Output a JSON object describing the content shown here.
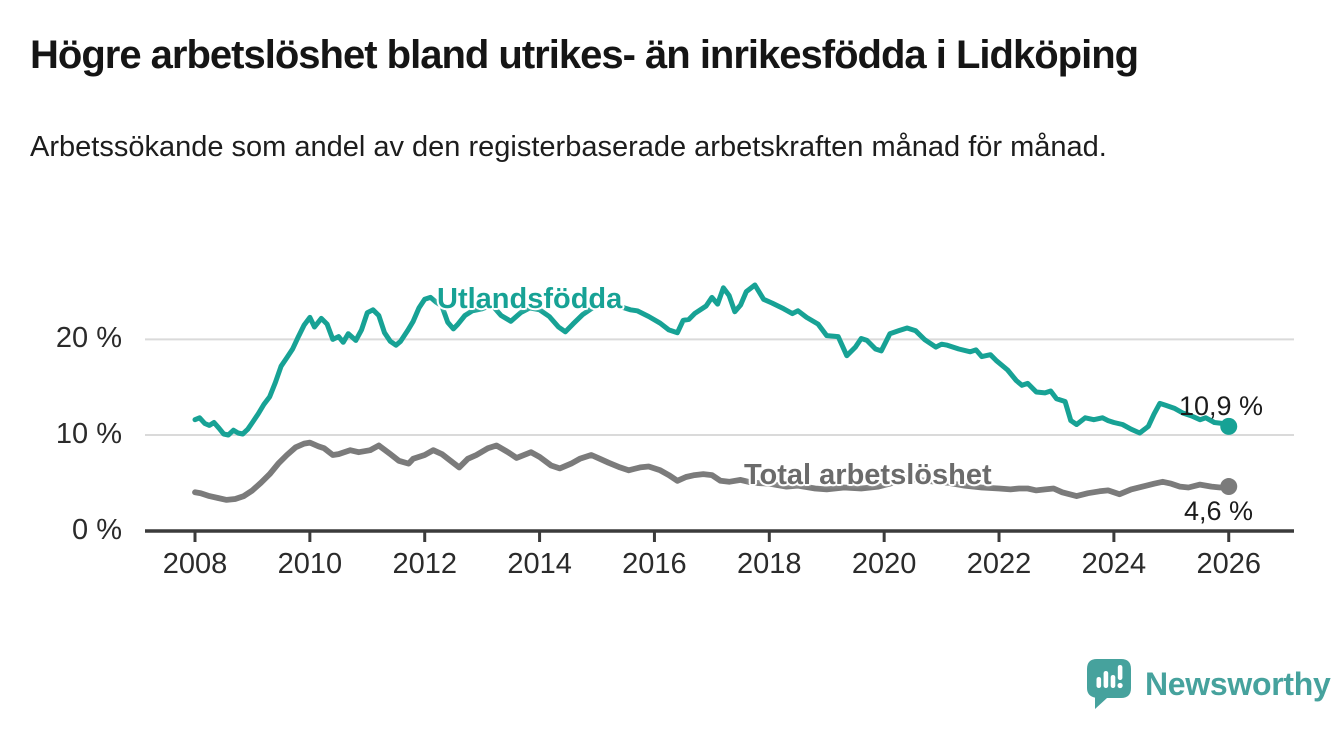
{
  "header": {
    "title": "Högre arbetslöshet bland utrikes- än inrikesfödda i Lidköping",
    "subtitle": "Arbetssökande som andel av den registerbaserade arbetskraften månad för månad."
  },
  "colors": {
    "foreign_line": "#17a295",
    "total_line": "#7b7b7b",
    "foreign_label": "#17a295",
    "total_label": "#6b6b6b",
    "axis": "#3b3b3b",
    "grid": "#dadada",
    "tick_text": "#2b2b2b",
    "end_label_text": "#1b1b1b",
    "brand": "#46a29d"
  },
  "footer": {
    "brand": "Newsworthy"
  },
  "chart_data": {
    "type": "line",
    "title": "Högre arbetslöshet bland utrikes- än inrikesfödda i Lidköping",
    "xlabel": "",
    "ylabel": "",
    "unit": "%",
    "grid": "horizontal",
    "legend_position": "inline-labels",
    "xlim": [
      2007.1,
      2027.15
    ],
    "ylim": [
      0,
      26.5
    ],
    "x_ticks": [
      2008,
      2010,
      2012,
      2014,
      2016,
      2018,
      2020,
      2022,
      2024,
      2026
    ],
    "y_ticks": [
      {
        "value": 0,
        "label": "0 %"
      },
      {
        "value": 10,
        "label": "10 %"
      },
      {
        "value": 20,
        "label": "20 %"
      }
    ],
    "grid_values": [
      10,
      20
    ],
    "series": [
      {
        "name": "Utlandsfödda",
        "color": "#17a295",
        "label_color": "#17a295",
        "end_label": "10,9 %",
        "end_value": 10.9,
        "points": [
          [
            2008.0,
            11.6
          ],
          [
            2008.08,
            11.8
          ],
          [
            2008.17,
            11.2
          ],
          [
            2008.25,
            11.0
          ],
          [
            2008.33,
            11.3
          ],
          [
            2008.42,
            10.7
          ],
          [
            2008.5,
            10.1
          ],
          [
            2008.58,
            10.0
          ],
          [
            2008.67,
            10.5
          ],
          [
            2008.75,
            10.2
          ],
          [
            2008.83,
            10.1
          ],
          [
            2008.92,
            10.6
          ],
          [
            2009.0,
            11.3
          ],
          [
            2009.1,
            12.2
          ],
          [
            2009.2,
            13.2
          ],
          [
            2009.3,
            14.0
          ],
          [
            2009.4,
            15.5
          ],
          [
            2009.5,
            17.2
          ],
          [
            2009.6,
            18.1
          ],
          [
            2009.7,
            19.0
          ],
          [
            2009.8,
            20.3
          ],
          [
            2009.9,
            21.5
          ],
          [
            2010.0,
            22.3
          ],
          [
            2010.08,
            21.3
          ],
          [
            2010.2,
            22.2
          ],
          [
            2010.3,
            21.6
          ],
          [
            2010.4,
            20.0
          ],
          [
            2010.5,
            20.3
          ],
          [
            2010.58,
            19.7
          ],
          [
            2010.67,
            20.6
          ],
          [
            2010.8,
            19.9
          ],
          [
            2010.9,
            21.0
          ],
          [
            2011.0,
            22.8
          ],
          [
            2011.1,
            23.1
          ],
          [
            2011.2,
            22.5
          ],
          [
            2011.3,
            20.7
          ],
          [
            2011.4,
            19.8
          ],
          [
            2011.5,
            19.4
          ],
          [
            2011.58,
            19.8
          ],
          [
            2011.7,
            20.9
          ],
          [
            2011.8,
            21.9
          ],
          [
            2011.9,
            23.3
          ],
          [
            2012.0,
            24.2
          ],
          [
            2012.1,
            24.4
          ],
          [
            2012.2,
            23.9
          ],
          [
            2012.3,
            23.5
          ],
          [
            2012.4,
            21.8
          ],
          [
            2012.5,
            21.1
          ],
          [
            2012.58,
            21.6
          ],
          [
            2012.7,
            22.5
          ],
          [
            2012.83,
            23.0
          ],
          [
            2013.0,
            23.2
          ],
          [
            2013.17,
            23.6
          ],
          [
            2013.33,
            22.5
          ],
          [
            2013.5,
            21.9
          ],
          [
            2013.67,
            22.8
          ],
          [
            2013.83,
            23.3
          ],
          [
            2014.0,
            23.1
          ],
          [
            2014.17,
            22.4
          ],
          [
            2014.33,
            21.3
          ],
          [
            2014.45,
            20.8
          ],
          [
            2014.58,
            21.6
          ],
          [
            2014.75,
            22.6
          ],
          [
            2014.92,
            23.3
          ],
          [
            2015.08,
            23.6
          ],
          [
            2015.25,
            23.8
          ],
          [
            2015.42,
            23.4
          ],
          [
            2015.58,
            23.1
          ],
          [
            2015.7,
            23.0
          ],
          [
            2015.9,
            22.4
          ],
          [
            2016.1,
            21.7
          ],
          [
            2016.25,
            21.0
          ],
          [
            2016.4,
            20.7
          ],
          [
            2016.5,
            22.0
          ],
          [
            2016.6,
            22.1
          ],
          [
            2016.7,
            22.7
          ],
          [
            2016.9,
            23.5
          ],
          [
            2017.0,
            24.4
          ],
          [
            2017.1,
            23.7
          ],
          [
            2017.2,
            25.4
          ],
          [
            2017.3,
            24.6
          ],
          [
            2017.4,
            22.9
          ],
          [
            2017.5,
            23.6
          ],
          [
            2017.6,
            25.0
          ],
          [
            2017.75,
            25.7
          ],
          [
            2017.9,
            24.2
          ],
          [
            2018.05,
            23.8
          ],
          [
            2018.25,
            23.2
          ],
          [
            2018.4,
            22.7
          ],
          [
            2018.5,
            23.0
          ],
          [
            2018.65,
            22.3
          ],
          [
            2018.85,
            21.6
          ],
          [
            2019.0,
            20.4
          ],
          [
            2019.2,
            20.3
          ],
          [
            2019.35,
            18.3
          ],
          [
            2019.5,
            19.2
          ],
          [
            2019.6,
            20.1
          ],
          [
            2019.7,
            19.9
          ],
          [
            2019.85,
            19.0
          ],
          [
            2019.95,
            18.8
          ],
          [
            2020.1,
            20.6
          ],
          [
            2020.25,
            20.9
          ],
          [
            2020.4,
            21.2
          ],
          [
            2020.55,
            20.9
          ],
          [
            2020.7,
            20.0
          ],
          [
            2020.9,
            19.2
          ],
          [
            2021.0,
            19.5
          ],
          [
            2021.1,
            19.4
          ],
          [
            2021.3,
            19.0
          ],
          [
            2021.5,
            18.7
          ],
          [
            2021.6,
            18.9
          ],
          [
            2021.7,
            18.2
          ],
          [
            2021.85,
            18.4
          ],
          [
            2021.95,
            17.8
          ],
          [
            2022.15,
            16.8
          ],
          [
            2022.3,
            15.7
          ],
          [
            2022.4,
            15.2
          ],
          [
            2022.5,
            15.4
          ],
          [
            2022.65,
            14.5
          ],
          [
            2022.8,
            14.4
          ],
          [
            2022.9,
            14.6
          ],
          [
            2023.0,
            13.8
          ],
          [
            2023.15,
            13.5
          ],
          [
            2023.25,
            11.5
          ],
          [
            2023.35,
            11.1
          ],
          [
            2023.5,
            11.8
          ],
          [
            2023.65,
            11.6
          ],
          [
            2023.8,
            11.8
          ],
          [
            2023.9,
            11.5
          ],
          [
            2024.0,
            11.3
          ],
          [
            2024.15,
            11.1
          ],
          [
            2024.3,
            10.6
          ],
          [
            2024.45,
            10.2
          ],
          [
            2024.6,
            10.9
          ],
          [
            2024.7,
            12.2
          ],
          [
            2024.8,
            13.3
          ],
          [
            2024.9,
            13.1
          ],
          [
            2025.05,
            12.8
          ],
          [
            2025.2,
            12.3
          ],
          [
            2025.35,
            12.0
          ],
          [
            2025.5,
            11.6
          ],
          [
            2025.6,
            11.8
          ],
          [
            2025.75,
            11.3
          ],
          [
            2025.9,
            11.2
          ],
          [
            2026.0,
            10.9
          ]
        ]
      },
      {
        "name": "Total arbetslöshet",
        "color": "#7b7b7b",
        "label_color": "#6b6b6b",
        "end_label": "4,6 %",
        "end_value": 4.6,
        "points": [
          [
            2008.0,
            4.0
          ],
          [
            2008.1,
            3.9
          ],
          [
            2008.25,
            3.6
          ],
          [
            2008.4,
            3.4
          ],
          [
            2008.55,
            3.2
          ],
          [
            2008.7,
            3.3
          ],
          [
            2008.85,
            3.6
          ],
          [
            2009.0,
            4.2
          ],
          [
            2009.15,
            5.0
          ],
          [
            2009.3,
            5.9
          ],
          [
            2009.45,
            7.0
          ],
          [
            2009.6,
            7.9
          ],
          [
            2009.75,
            8.7
          ],
          [
            2009.9,
            9.1
          ],
          [
            2010.0,
            9.2
          ],
          [
            2010.15,
            8.8
          ],
          [
            2010.25,
            8.6
          ],
          [
            2010.4,
            7.9
          ],
          [
            2010.5,
            8.0
          ],
          [
            2010.7,
            8.4
          ],
          [
            2010.85,
            8.2
          ],
          [
            2011.05,
            8.4
          ],
          [
            2011.2,
            8.9
          ],
          [
            2011.4,
            8.0
          ],
          [
            2011.55,
            7.3
          ],
          [
            2011.72,
            7.0
          ],
          [
            2011.8,
            7.5
          ],
          [
            2012.0,
            7.9
          ],
          [
            2012.15,
            8.4
          ],
          [
            2012.3,
            8.0
          ],
          [
            2012.45,
            7.3
          ],
          [
            2012.6,
            6.6
          ],
          [
            2012.75,
            7.5
          ],
          [
            2012.9,
            7.9
          ],
          [
            2013.1,
            8.6
          ],
          [
            2013.25,
            8.9
          ],
          [
            2013.45,
            8.2
          ],
          [
            2013.6,
            7.6
          ],
          [
            2013.85,
            8.2
          ],
          [
            2014.0,
            7.7
          ],
          [
            2014.2,
            6.8
          ],
          [
            2014.35,
            6.5
          ],
          [
            2014.55,
            7.0
          ],
          [
            2014.7,
            7.5
          ],
          [
            2014.9,
            7.9
          ],
          [
            2015.05,
            7.5
          ],
          [
            2015.2,
            7.1
          ],
          [
            2015.4,
            6.6
          ],
          [
            2015.55,
            6.3
          ],
          [
            2015.75,
            6.6
          ],
          [
            2015.9,
            6.7
          ],
          [
            2016.1,
            6.3
          ],
          [
            2016.25,
            5.8
          ],
          [
            2016.4,
            5.2
          ],
          [
            2016.55,
            5.6
          ],
          [
            2016.7,
            5.8
          ],
          [
            2016.85,
            5.9
          ],
          [
            2017.0,
            5.8
          ],
          [
            2017.15,
            5.2
          ],
          [
            2017.3,
            5.1
          ],
          [
            2017.5,
            5.3
          ],
          [
            2017.7,
            5.0
          ],
          [
            2018.0,
            4.9
          ],
          [
            2018.3,
            4.6
          ],
          [
            2018.5,
            4.7
          ],
          [
            2018.8,
            4.4
          ],
          [
            2019.0,
            4.3
          ],
          [
            2019.3,
            4.5
          ],
          [
            2019.6,
            4.4
          ],
          [
            2019.9,
            4.6
          ],
          [
            2020.1,
            4.9
          ],
          [
            2020.35,
            5.5
          ],
          [
            2020.6,
            5.3
          ],
          [
            2020.9,
            5.1
          ],
          [
            2021.1,
            5.0
          ],
          [
            2021.4,
            4.7
          ],
          [
            2021.7,
            4.5
          ],
          [
            2022.0,
            4.4
          ],
          [
            2022.2,
            4.3
          ],
          [
            2022.35,
            4.4
          ],
          [
            2022.5,
            4.4
          ],
          [
            2022.65,
            4.2
          ],
          [
            2022.8,
            4.3
          ],
          [
            2022.95,
            4.4
          ],
          [
            2023.1,
            4.0
          ],
          [
            2023.35,
            3.6
          ],
          [
            2023.55,
            3.9
          ],
          [
            2023.75,
            4.1
          ],
          [
            2023.9,
            4.2
          ],
          [
            2024.1,
            3.8
          ],
          [
            2024.3,
            4.3
          ],
          [
            2024.5,
            4.6
          ],
          [
            2024.7,
            4.9
          ],
          [
            2024.85,
            5.1
          ],
          [
            2025.0,
            4.9
          ],
          [
            2025.15,
            4.6
          ],
          [
            2025.3,
            4.5
          ],
          [
            2025.5,
            4.8
          ],
          [
            2025.7,
            4.6
          ],
          [
            2025.85,
            4.5
          ],
          [
            2026.0,
            4.6
          ]
        ]
      }
    ]
  }
}
